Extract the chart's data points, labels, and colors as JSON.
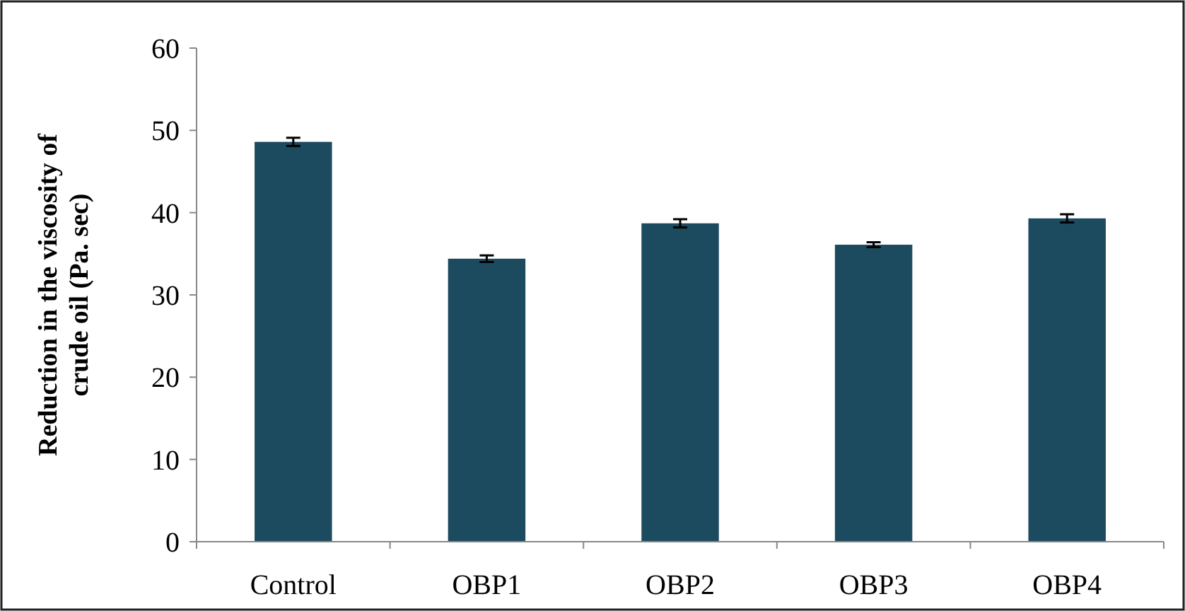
{
  "chart_data": {
    "type": "bar",
    "ylabel": "Reduction in the viscosity of\ncrude oil (Pa. sec)",
    "categories": [
      "Control",
      "OBP1",
      "OBP2",
      "OBP3",
      "OBP4"
    ],
    "values": [
      48.6,
      34.4,
      38.7,
      36.1,
      39.3
    ],
    "errors": [
      0.5,
      0.4,
      0.5,
      0.3,
      0.5
    ],
    "color": "#1c4a5e",
    "ylim": [
      0,
      60
    ],
    "yticks": [
      0,
      10,
      20,
      30,
      40,
      50,
      60
    ],
    "grid": false
  }
}
